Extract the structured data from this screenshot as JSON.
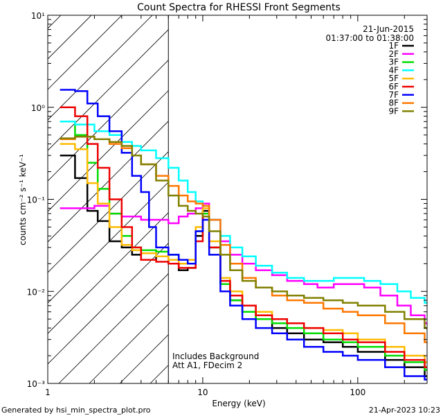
{
  "chart_data": {
    "type": "line",
    "title": "Count Spectra for RHESSI Front Segments",
    "xlabel": "Energy (keV)",
    "ylabel": "counts cm⁻² s⁻¹ keV⁻¹",
    "xscale": "log",
    "yscale": "log",
    "xlim": [
      1,
      280
    ],
    "ylim": [
      0.001,
      10
    ],
    "x_ticks": [
      {
        "value": 1,
        "label": "1"
      },
      {
        "value": 10,
        "label": "10"
      },
      {
        "value": 100,
        "label": "100"
      }
    ],
    "y_ticks": [
      {
        "value": 0.001,
        "label": "10⁻³"
      },
      {
        "value": 0.01,
        "label": "10⁻²"
      },
      {
        "value": 0.1,
        "label": "10⁻¹"
      },
      {
        "value": 1,
        "label": "10⁰"
      },
      {
        "value": 10,
        "label": "10¹"
      }
    ],
    "hatched_region": [
      1,
      6
    ],
    "legend_position": "top-right",
    "date": "21-Jun-2015",
    "time_range": "01:37:00 to 01:38:00",
    "annotations": [
      "Includes Background",
      "Att A1, FDecim 2"
    ],
    "footer_left": "Generated by hsi_min_spectra_plot.pro",
    "footer_right": "21-Apr-2023 10:23",
    "series": [
      {
        "name": "1F",
        "color": "#000000",
        "points": [
          [
            1.2,
            0.3
          ],
          [
            1.5,
            0.17
          ],
          [
            1.8,
            0.075
          ],
          [
            2.1,
            0.058
          ],
          [
            2.5,
            0.035
          ],
          [
            3.0,
            0.03
          ],
          [
            3.5,
            0.025
          ],
          [
            4.0,
            0.022
          ],
          [
            5.0,
            0.024
          ],
          [
            6.0,
            0.02
          ],
          [
            7.0,
            0.017
          ],
          [
            8.0,
            0.018
          ],
          [
            9.0,
            0.04
          ],
          [
            10.0,
            0.075
          ],
          [
            11.0,
            0.03
          ],
          [
            13.0,
            0.012
          ],
          [
            15.0,
            0.008
          ],
          [
            18.0,
            0.006
          ],
          [
            22.0,
            0.005
          ],
          [
            28.0,
            0.004
          ],
          [
            35.0,
            0.0035
          ],
          [
            45.0,
            0.003
          ],
          [
            60.0,
            0.0028
          ],
          [
            80.0,
            0.0025
          ],
          [
            100.0,
            0.0022
          ],
          [
            150.0,
            0.0018
          ],
          [
            200.0,
            0.0015
          ],
          [
            270.0,
            0.0012
          ]
        ]
      },
      {
        "name": "2F",
        "color": "#ff00ff",
        "points": [
          [
            1.2,
            0.08
          ],
          [
            1.5,
            0.08
          ],
          [
            2.0,
            0.085
          ],
          [
            2.5,
            0.07
          ],
          [
            3.0,
            0.065
          ],
          [
            4.0,
            0.06
          ],
          [
            5.0,
            0.06
          ],
          [
            6.0,
            0.055
          ],
          [
            7.0,
            0.065
          ],
          [
            8.0,
            0.07
          ],
          [
            9.0,
            0.08
          ],
          [
            10.0,
            0.09
          ],
          [
            11.0,
            0.06
          ],
          [
            13.0,
            0.035
          ],
          [
            15.0,
            0.025
          ],
          [
            18.0,
            0.02
          ],
          [
            22.0,
            0.017
          ],
          [
            28.0,
            0.015
          ],
          [
            35.0,
            0.013
          ],
          [
            45.0,
            0.012
          ],
          [
            55.0,
            0.011
          ],
          [
            70.0,
            0.012
          ],
          [
            90.0,
            0.012
          ],
          [
            110.0,
            0.011
          ],
          [
            140.0,
            0.009
          ],
          [
            180.0,
            0.007
          ],
          [
            220.0,
            0.0055
          ],
          [
            270.0,
            0.0045
          ]
        ]
      },
      {
        "name": "3F",
        "color": "#00dd00",
        "points": [
          [
            1.2,
            0.7
          ],
          [
            1.5,
            0.5
          ],
          [
            1.8,
            0.25
          ],
          [
            2.1,
            0.13
          ],
          [
            2.5,
            0.07
          ],
          [
            3.0,
            0.04
          ],
          [
            3.5,
            0.03
          ],
          [
            4.0,
            0.028
          ],
          [
            5.0,
            0.027
          ],
          [
            6.0,
            0.025
          ],
          [
            7.0,
            0.022
          ],
          [
            8.0,
            0.02
          ],
          [
            9.0,
            0.045
          ],
          [
            10.0,
            0.07
          ],
          [
            11.0,
            0.03
          ],
          [
            13.0,
            0.012
          ],
          [
            15.0,
            0.008
          ],
          [
            18.0,
            0.006
          ],
          [
            22.0,
            0.005
          ],
          [
            28.0,
            0.0045
          ],
          [
            35.0,
            0.004
          ],
          [
            45.0,
            0.0035
          ],
          [
            60.0,
            0.003
          ],
          [
            80.0,
            0.0028
          ],
          [
            100.0,
            0.0025
          ],
          [
            150.0,
            0.002
          ],
          [
            200.0,
            0.0017
          ],
          [
            270.0,
            0.0014
          ]
        ]
      },
      {
        "name": "4F",
        "color": "#00ffff",
        "points": [
          [
            1.2,
            0.7
          ],
          [
            1.5,
            0.65
          ],
          [
            2.0,
            0.55
          ],
          [
            2.5,
            0.5
          ],
          [
            3.0,
            0.42
          ],
          [
            3.5,
            0.38
          ],
          [
            4.0,
            0.34
          ],
          [
            5.0,
            0.28
          ],
          [
            6.0,
            0.22
          ],
          [
            7.0,
            0.16
          ],
          [
            8.0,
            0.12
          ],
          [
            9.0,
            0.095
          ],
          [
            10.0,
            0.085
          ],
          [
            11.0,
            0.06
          ],
          [
            13.0,
            0.04
          ],
          [
            15.0,
            0.03
          ],
          [
            18.0,
            0.024
          ],
          [
            22.0,
            0.019
          ],
          [
            28.0,
            0.016
          ],
          [
            35.0,
            0.014
          ],
          [
            45.0,
            0.013
          ],
          [
            55.0,
            0.013
          ],
          [
            70.0,
            0.014
          ],
          [
            90.0,
            0.014
          ],
          [
            110.0,
            0.013
          ],
          [
            140.0,
            0.012
          ],
          [
            180.0,
            0.01
          ],
          [
            220.0,
            0.0085
          ],
          [
            270.0,
            0.0075
          ]
        ]
      },
      {
        "name": "5F",
        "color": "#ffbb00",
        "points": [
          [
            1.2,
            0.4
          ],
          [
            1.5,
            0.35
          ],
          [
            1.8,
            0.15
          ],
          [
            2.1,
            0.09
          ],
          [
            2.5,
            0.05
          ],
          [
            3.0,
            0.032
          ],
          [
            3.5,
            0.028
          ],
          [
            4.0,
            0.026
          ],
          [
            5.0,
            0.024
          ],
          [
            6.0,
            0.022
          ],
          [
            7.0,
            0.02
          ],
          [
            8.0,
            0.022
          ],
          [
            9.0,
            0.05
          ],
          [
            10.0,
            0.08
          ],
          [
            11.0,
            0.035
          ],
          [
            13.0,
            0.014
          ],
          [
            15.0,
            0.01
          ],
          [
            18.0,
            0.007
          ],
          [
            22.0,
            0.006
          ],
          [
            28.0,
            0.005
          ],
          [
            35.0,
            0.0045
          ],
          [
            45.0,
            0.004
          ],
          [
            60.0,
            0.0038
          ],
          [
            80.0,
            0.0035
          ],
          [
            100.0,
            0.003
          ],
          [
            150.0,
            0.0025
          ],
          [
            200.0,
            0.002
          ],
          [
            270.0,
            0.0017
          ]
        ]
      },
      {
        "name": "6F",
        "color": "#ee0000",
        "points": [
          [
            1.2,
            1.0
          ],
          [
            1.5,
            0.8
          ],
          [
            1.8,
            0.4
          ],
          [
            2.1,
            0.22
          ],
          [
            2.5,
            0.1
          ],
          [
            3.0,
            0.05
          ],
          [
            3.5,
            0.03
          ],
          [
            4.0,
            0.022
          ],
          [
            5.0,
            0.021
          ],
          [
            6.0,
            0.02
          ],
          [
            7.0,
            0.018
          ],
          [
            8.0,
            0.018
          ],
          [
            9.0,
            0.035
          ],
          [
            10.0,
            0.065
          ],
          [
            11.0,
            0.03
          ],
          [
            13.0,
            0.013
          ],
          [
            15.0,
            0.009
          ],
          [
            18.0,
            0.007
          ],
          [
            22.0,
            0.0055
          ],
          [
            28.0,
            0.005
          ],
          [
            35.0,
            0.0045
          ],
          [
            45.0,
            0.004
          ],
          [
            60.0,
            0.0035
          ],
          [
            80.0,
            0.003
          ],
          [
            100.0,
            0.0028
          ],
          [
            150.0,
            0.0022
          ],
          [
            200.0,
            0.0018
          ],
          [
            270.0,
            0.0015
          ]
        ]
      },
      {
        "name": "7F",
        "color": "#0000ff",
        "points": [
          [
            1.2,
            1.55
          ],
          [
            1.5,
            1.5
          ],
          [
            1.8,
            1.1
          ],
          [
            2.1,
            0.8
          ],
          [
            2.5,
            0.55
          ],
          [
            3.0,
            0.32
          ],
          [
            3.5,
            0.18
          ],
          [
            4.0,
            0.12
          ],
          [
            4.5,
            0.05
          ],
          [
            5.0,
            0.03
          ],
          [
            6.0,
            0.025
          ],
          [
            7.0,
            0.022
          ],
          [
            8.0,
            0.02
          ],
          [
            9.0,
            0.045
          ],
          [
            10.0,
            0.06
          ],
          [
            11.0,
            0.025
          ],
          [
            13.0,
            0.01
          ],
          [
            15.0,
            0.007
          ],
          [
            18.0,
            0.005
          ],
          [
            22.0,
            0.004
          ],
          [
            28.0,
            0.0035
          ],
          [
            35.0,
            0.003
          ],
          [
            45.0,
            0.0025
          ],
          [
            60.0,
            0.0022
          ],
          [
            80.0,
            0.002
          ],
          [
            100.0,
            0.0018
          ],
          [
            150.0,
            0.0015
          ],
          [
            200.0,
            0.0012
          ],
          [
            270.0,
            0.0011
          ]
        ]
      },
      {
        "name": "8F",
        "color": "#ff7700",
        "points": [
          [
            1.2,
            0.45
          ],
          [
            1.5,
            0.48
          ],
          [
            2.0,
            0.45
          ],
          [
            2.5,
            0.4
          ],
          [
            3.0,
            0.36
          ],
          [
            3.5,
            0.3
          ],
          [
            4.0,
            0.24
          ],
          [
            5.0,
            0.18
          ],
          [
            6.0,
            0.14
          ],
          [
            7.0,
            0.11
          ],
          [
            8.0,
            0.095
          ],
          [
            9.0,
            0.09
          ],
          [
            10.0,
            0.085
          ],
          [
            11.0,
            0.06
          ],
          [
            13.0,
            0.032
          ],
          [
            15.0,
            0.02
          ],
          [
            18.0,
            0.014
          ],
          [
            22.0,
            0.011
          ],
          [
            28.0,
            0.009
          ],
          [
            35.0,
            0.008
          ],
          [
            45.0,
            0.0075
          ],
          [
            60.0,
            0.0065
          ],
          [
            80.0,
            0.006
          ],
          [
            100.0,
            0.0055
          ],
          [
            150.0,
            0.0045
          ],
          [
            200.0,
            0.0035
          ],
          [
            270.0,
            0.0028
          ]
        ]
      },
      {
        "name": "9F",
        "color": "#808000",
        "points": [
          [
            1.2,
            0.46
          ],
          [
            1.5,
            0.48
          ],
          [
            2.0,
            0.45
          ],
          [
            2.5,
            0.42
          ],
          [
            3.0,
            0.38
          ],
          [
            3.5,
            0.3
          ],
          [
            4.0,
            0.24
          ],
          [
            5.0,
            0.16
          ],
          [
            6.0,
            0.11
          ],
          [
            7.0,
            0.085
          ],
          [
            8.0,
            0.075
          ],
          [
            9.0,
            0.07
          ],
          [
            10.0,
            0.065
          ],
          [
            11.0,
            0.045
          ],
          [
            13.0,
            0.025
          ],
          [
            15.0,
            0.017
          ],
          [
            18.0,
            0.013
          ],
          [
            22.0,
            0.011
          ],
          [
            28.0,
            0.01
          ],
          [
            35.0,
            0.009
          ],
          [
            45.0,
            0.0085
          ],
          [
            60.0,
            0.008
          ],
          [
            80.0,
            0.0075
          ],
          [
            100.0,
            0.007
          ],
          [
            150.0,
            0.006
          ],
          [
            200.0,
            0.005
          ],
          [
            270.0,
            0.004
          ]
        ]
      }
    ]
  }
}
